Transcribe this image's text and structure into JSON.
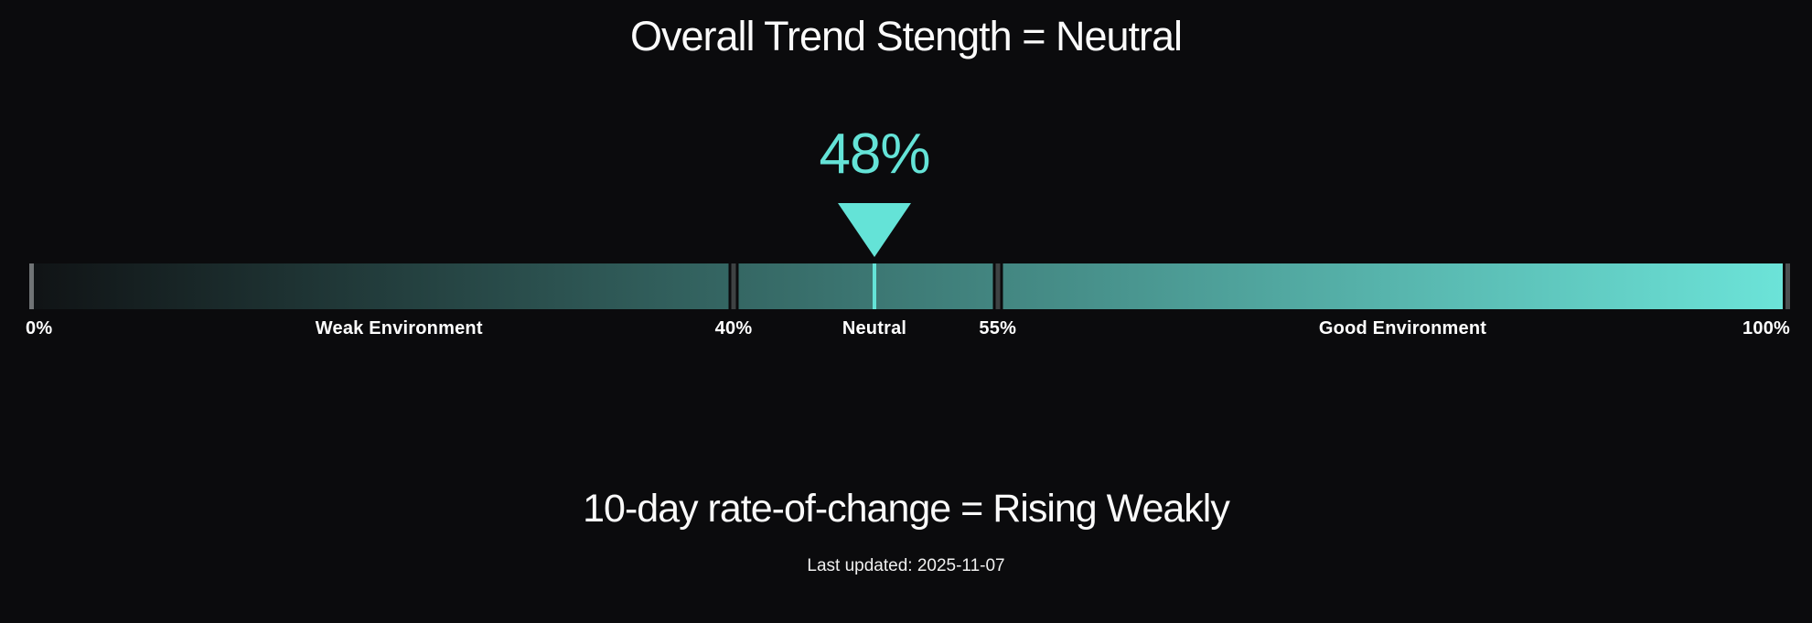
{
  "colors": {
    "background": "#0b0b0d",
    "accent": "#64e3d7",
    "track_start": "#101315",
    "track_end": "#6ce4d9",
    "tick_start": "#707476",
    "tick_inner": "#3e4243",
    "tick_end": "#4b4f50",
    "text": "#fafafa"
  },
  "header": {
    "title": "Overall Trend Stength = Neutral"
  },
  "gauge": {
    "value_label": "48%"
  },
  "footer": {
    "subtitle": "10-day rate-of-change = Rising Weakly",
    "last_updated": "Last updated: 2025-11-07"
  },
  "chart_data": {
    "type": "gauge",
    "title": "Overall Trend Stength = Neutral",
    "value": 48,
    "value_label": "48%",
    "range": [
      0,
      100
    ],
    "thresholds": [
      40,
      55
    ],
    "tick_positions": [
      0,
      40,
      55,
      100
    ],
    "axis_labels": [
      {
        "pos": 0,
        "text": "0%",
        "align": "left"
      },
      {
        "pos": 21,
        "text": "Weak Environment",
        "align": "center"
      },
      {
        "pos": 40,
        "text": "40%",
        "align": "center"
      },
      {
        "pos": 48,
        "text": "Neutral",
        "align": "center"
      },
      {
        "pos": 55,
        "text": "55%",
        "align": "center"
      },
      {
        "pos": 78,
        "text": "Good Environment",
        "align": "center"
      },
      {
        "pos": 100,
        "text": "100%",
        "align": "right"
      }
    ],
    "zones": [
      {
        "range": [
          0,
          40
        ],
        "label": "Weak Environment"
      },
      {
        "range": [
          40,
          55
        ],
        "label": "Neutral"
      },
      {
        "range": [
          55,
          100
        ],
        "label": "Good Environment"
      }
    ],
    "subtitle": "10-day rate-of-change = Rising Weakly",
    "last_updated": "2025-11-07",
    "legend": null,
    "grid": false
  }
}
